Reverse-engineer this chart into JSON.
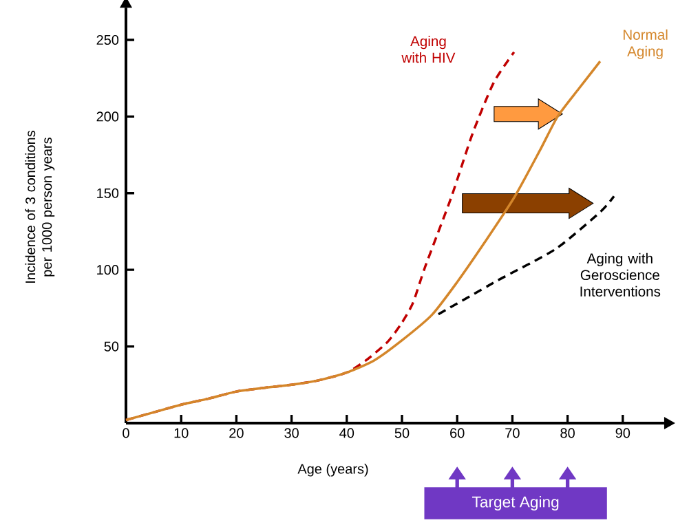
{
  "chart_data": {
    "type": "line",
    "xlabel": "Age (years)",
    "ylabel": "Incidence of 3 conditions per 1000 person years",
    "xlim": [
      0,
      97.5
    ],
    "ylim": [
      0,
      271
    ],
    "xticks": [
      0,
      10,
      20,
      30,
      40,
      50,
      60,
      70,
      80,
      90
    ],
    "yticks": [
      50,
      100,
      150,
      200,
      250
    ],
    "grid": false,
    "legend": false,
    "marker": "none",
    "annotations": [
      "Target Aging"
    ],
    "series": [
      {
        "name": "Aging with HIV",
        "color": "#c00000",
        "line_style": "dashed",
        "x": [
          0,
          5,
          10,
          15,
          20,
          25,
          30,
          35,
          40,
          43.5,
          47.4,
          49.9,
          52,
          54.2,
          58.9,
          62.8,
          66.6,
          70.3
        ],
        "values": [
          2,
          7,
          12,
          16,
          20.6,
          23,
          25,
          28,
          33,
          41,
          53,
          65,
          78.5,
          102,
          147,
          189,
          222,
          242
        ]
      },
      {
        "name": "Normal Aging",
        "color": "#d4862a",
        "line_style": "solid",
        "x": [
          0,
          5,
          10,
          15,
          20,
          25,
          30,
          35,
          40,
          45,
          50,
          55.4,
          60,
          65,
          70.3,
          75,
          78.2,
          82,
          85.9
        ],
        "values": [
          2,
          7,
          12,
          16,
          20.6,
          23,
          25,
          28,
          33,
          41,
          54,
          70.5,
          92,
          118,
          147,
          178,
          200,
          218,
          236
        ]
      },
      {
        "name": "Aging with Geroscience Interventions",
        "color": "#000000",
        "line_style": "dashed",
        "x": [
          56.6,
          67.3,
          77.8,
          86,
          88.4
        ],
        "values": [
          71,
          93,
          113.5,
          138,
          148
        ]
      }
    ]
  }
}
